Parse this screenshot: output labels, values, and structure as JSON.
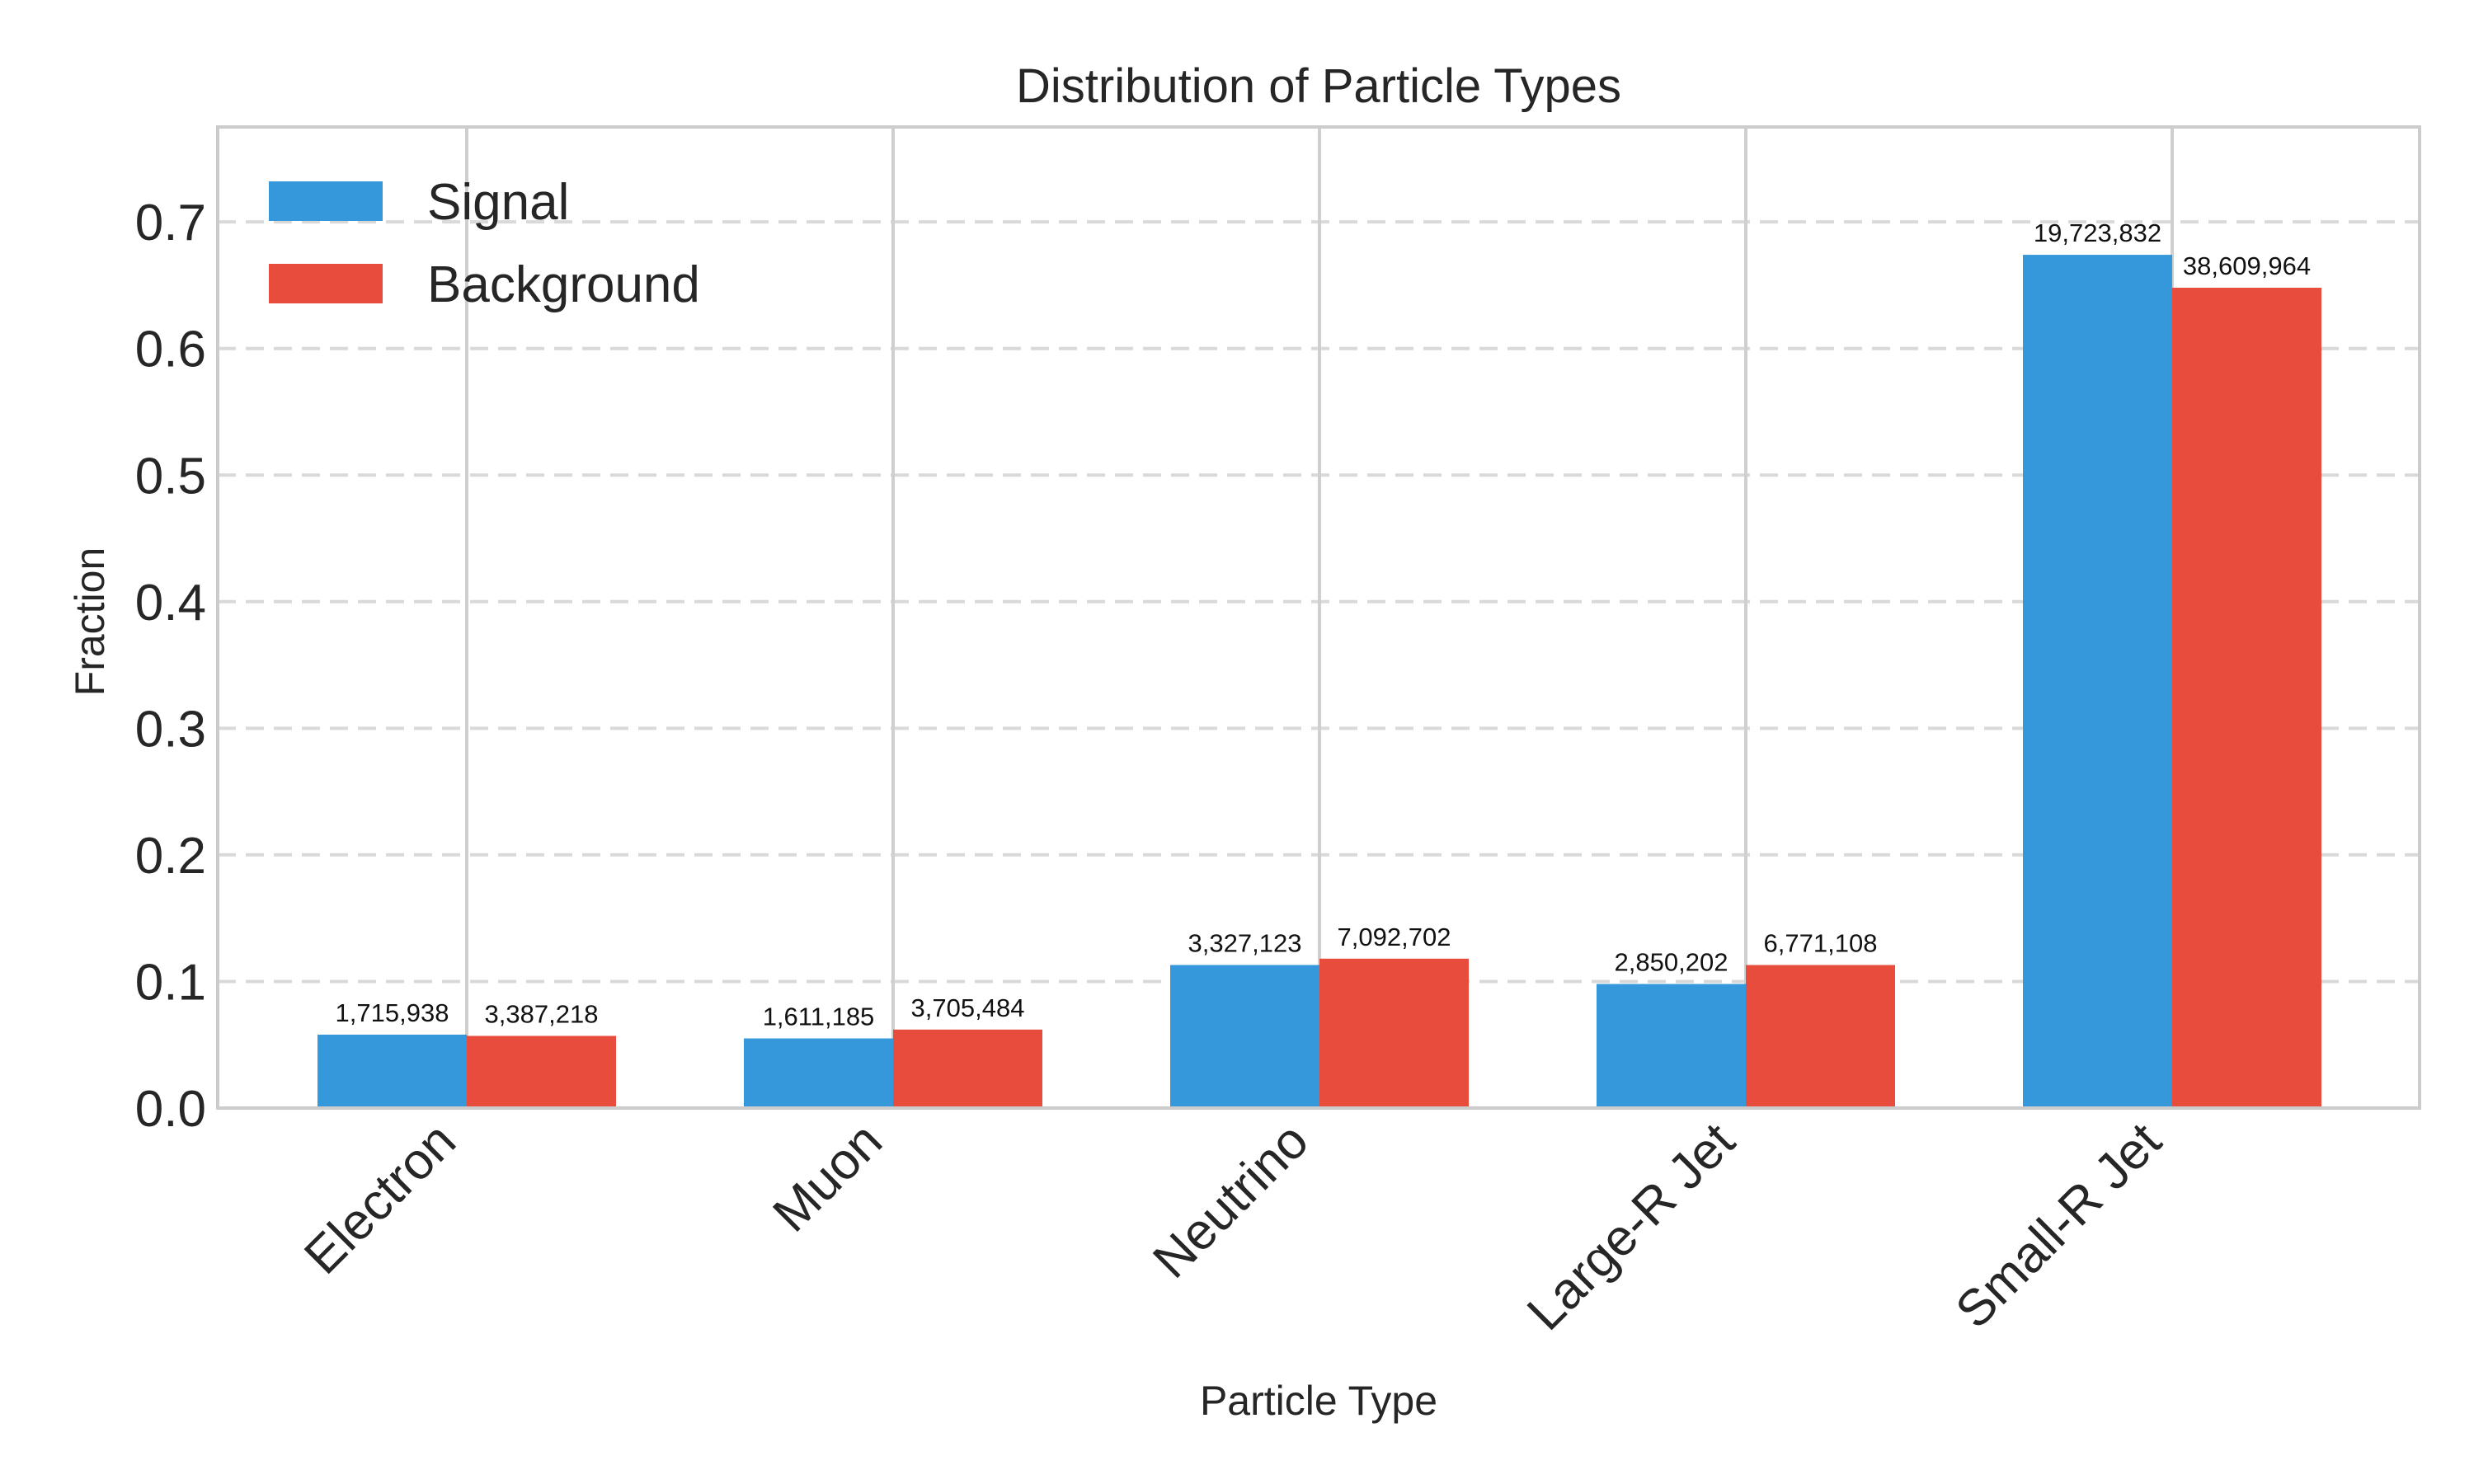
{
  "chart_data": {
    "type": "bar",
    "title": "Distribution of Particle Types",
    "xlabel": "Particle Type",
    "ylabel": "Fraction",
    "ylim": [
      0,
      0.775
    ],
    "yticks": [
      "0.0",
      "0.1",
      "0.2",
      "0.3",
      "0.4",
      "0.5",
      "0.6",
      "0.7"
    ],
    "ytick_values": [
      0,
      0.1,
      0.2,
      0.3,
      0.4,
      0.5,
      0.6,
      0.7
    ],
    "categories": [
      "Electron",
      "Muon",
      "Neutrino",
      "Large-R Jet",
      "Small-R Jet"
    ],
    "grid": true,
    "legend_position": "top-left",
    "series": [
      {
        "name": "Signal",
        "color": "#3498db",
        "values": [
          0.058,
          0.055,
          0.113,
          0.098,
          0.674
        ],
        "labels": [
          "1,715,938",
          "1,611,185",
          "3,327,123",
          "2,850,202",
          "19,723,832"
        ]
      },
      {
        "name": "Background",
        "color": "#e74c3c",
        "values": [
          0.057,
          0.062,
          0.118,
          0.113,
          0.648
        ],
        "labels": [
          "3,387,218",
          "3,705,484",
          "7,092,702",
          "6,771,108",
          "38,609,964"
        ]
      }
    ]
  }
}
